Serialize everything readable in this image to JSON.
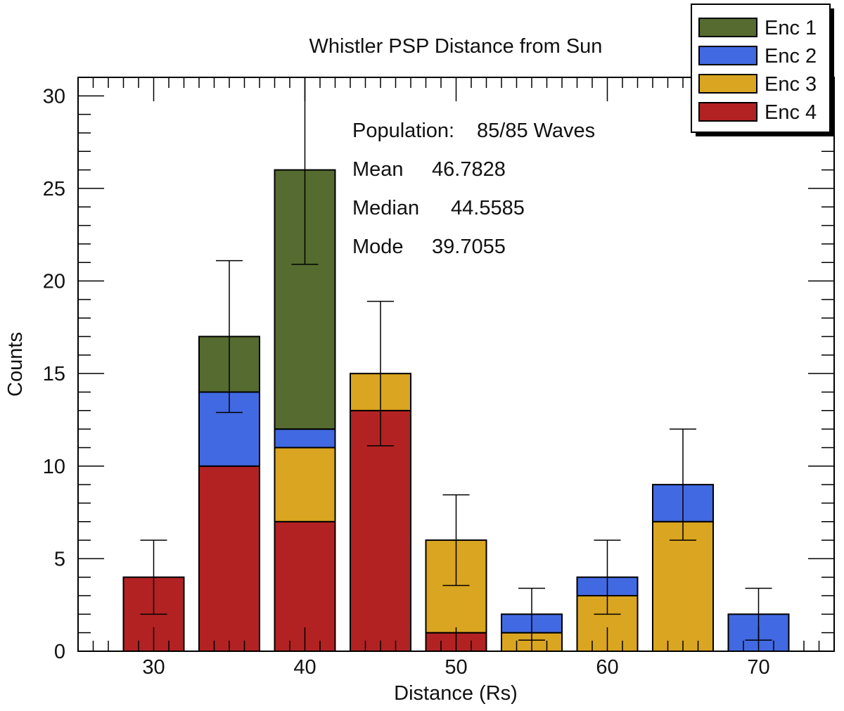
{
  "chart_data": {
    "type": "bar",
    "stacked": true,
    "title": "Whistler PSP Distance from Sun",
    "xlabel": "Distance (Rs)",
    "ylabel": "Counts",
    "xlim": [
      25,
      75
    ],
    "ylim": [
      0,
      31
    ],
    "x_ticks": [
      30,
      40,
      50,
      60,
      70
    ],
    "y_ticks": [
      0,
      5,
      10,
      15,
      20,
      25,
      30
    ],
    "bin_width": 5,
    "bin_centers": [
      30,
      35,
      40,
      45,
      50,
      55,
      60,
      65,
      70
    ],
    "series": [
      {
        "name": "Enc 4",
        "color": "#b22222",
        "values": [
          4,
          10,
          7,
          13,
          1,
          0,
          0,
          0,
          0
        ]
      },
      {
        "name": "Enc 3",
        "color": "#daa520",
        "values": [
          0,
          0,
          4,
          2,
          5,
          1,
          3,
          7,
          0
        ]
      },
      {
        "name": "Enc 2",
        "color": "#4169e1",
        "values": [
          0,
          4,
          1,
          0,
          0,
          1,
          1,
          2,
          2
        ]
      },
      {
        "name": "Enc 1",
        "color": "#556b2f",
        "values": [
          0,
          3,
          14,
          0,
          0,
          0,
          0,
          0,
          0
        ]
      }
    ],
    "legend": {
      "position": "top-right",
      "entries": [
        {
          "label": "Enc 1",
          "color": "#556b2f"
        },
        {
          "label": "Enc 2",
          "color": "#4169e1"
        },
        {
          "label": "Enc 3",
          "color": "#daa520"
        },
        {
          "label": "Enc 4",
          "color": "#b22222"
        }
      ]
    },
    "error_bars": [
      {
        "x": 30,
        "low": 2,
        "high": 6
      },
      {
        "x": 35,
        "low": 12.9,
        "high": 21.1
      },
      {
        "x": 40,
        "low": 20.9,
        "high": 31.1
      },
      {
        "x": 45,
        "low": 11.1,
        "high": 18.9
      },
      {
        "x": 50,
        "low": 3.55,
        "high": 8.45
      },
      {
        "x": 55,
        "low": 0.6,
        "high": 3.4
      },
      {
        "x": 60,
        "low": 2,
        "high": 6
      },
      {
        "x": 65,
        "low": 6,
        "high": 12
      },
      {
        "x": 70,
        "low": 0.6,
        "high": 3.4
      }
    ],
    "annotations": [
      {
        "label": "Population:",
        "value": "85/85 Waves"
      },
      {
        "label": "Mean",
        "value": "46.7828"
      },
      {
        "label": "Median",
        "value": "44.5585"
      },
      {
        "label": "Mode",
        "value": "39.7055"
      }
    ]
  }
}
